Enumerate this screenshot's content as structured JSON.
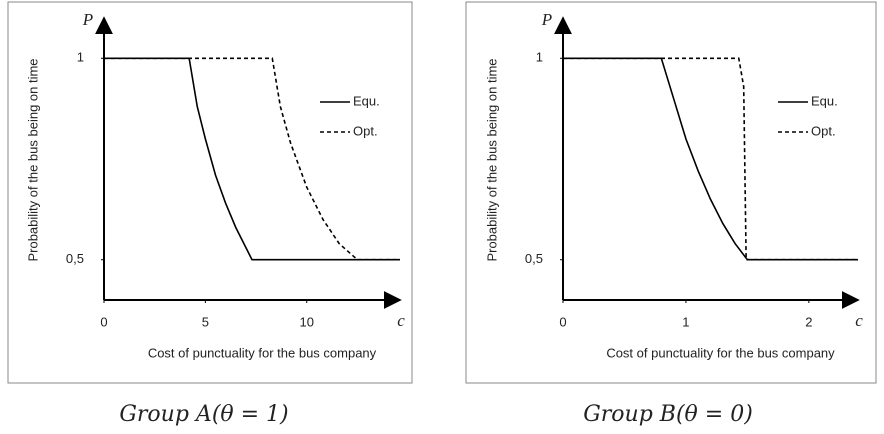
{
  "chart_data": [
    {
      "type": "line",
      "caption": "Group A(θ = 1)",
      "y_symbol": "P",
      "x_symbol": "c",
      "xlabel": "Cost of punctuality for  the bus company",
      "ylabel": "Probability of the bus being on time",
      "xlim": [
        0,
        14.6
      ],
      "ylim": [
        0.4,
        1.1
      ],
      "xticks": [
        0,
        5,
        10
      ],
      "yticks": [
        {
          "value": 0.5,
          "label": "0,5"
        },
        1
      ],
      "legend": "upper right",
      "series": [
        {
          "name": "Equ.",
          "color": "#000000",
          "dash": "solid",
          "x": [
            0,
            4.2,
            4.6,
            5,
            5.5,
            6,
            6.5,
            7,
            7.3,
            14.6
          ],
          "values": [
            1,
            1,
            0.88,
            0.8,
            0.71,
            0.64,
            0.58,
            0.53,
            0.5,
            0.5
          ]
        },
        {
          "name": "Opt.",
          "color": "#000000",
          "dash": "dashed",
          "x": [
            0,
            8.3,
            8.7,
            9.2,
            10,
            10.8,
            11.6,
            12.5,
            14.6
          ],
          "values": [
            1,
            1,
            0.88,
            0.79,
            0.68,
            0.6,
            0.54,
            0.5,
            0.5
          ]
        }
      ]
    },
    {
      "type": "line",
      "caption": "Group B(θ = 0)",
      "y_symbol": "P",
      "x_symbol": "c",
      "xlabel": "Cost of punctuality for  the bus company",
      "ylabel": "Probability of the bus being on time",
      "xlim": [
        0,
        2.4
      ],
      "ylim": [
        0.4,
        1.1
      ],
      "xticks": [
        0,
        1,
        2
      ],
      "yticks": [
        {
          "value": 0.5,
          "label": "0,5"
        },
        1
      ],
      "legend": "upper right",
      "series": [
        {
          "name": "Equ.",
          "color": "#000000",
          "dash": "solid",
          "x": [
            0,
            0.8,
            0.9,
            1.0,
            1.1,
            1.2,
            1.3,
            1.4,
            1.5,
            2.4
          ],
          "values": [
            1,
            1,
            0.9,
            0.8,
            0.72,
            0.65,
            0.59,
            0.54,
            0.5,
            0.5
          ]
        },
        {
          "name": "Opt.",
          "color": "#000000",
          "dash": "dashed",
          "x": [
            0,
            1.43,
            1.47,
            1.49,
            2.4
          ],
          "values": [
            1,
            1,
            0.93,
            0.5,
            0.5
          ]
        }
      ]
    }
  ]
}
